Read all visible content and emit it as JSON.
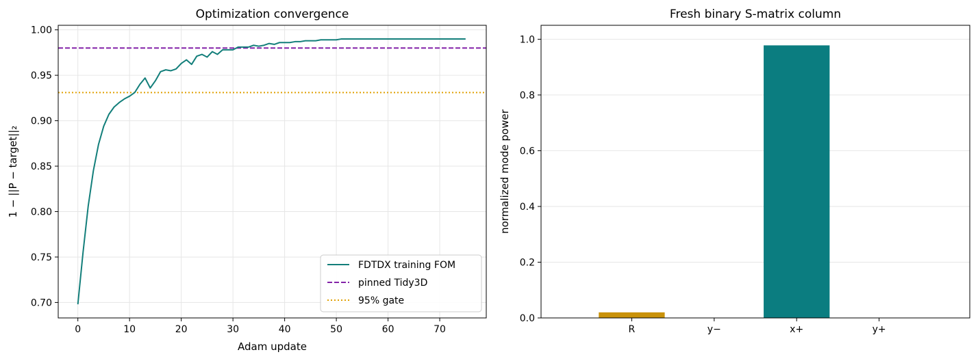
{
  "chart_data": [
    {
      "type": "line",
      "title": "Optimization convergence",
      "xlabel": "Adam update",
      "ylabel": "1 − ||P − target||₂",
      "xlim": [
        -3.8,
        79
      ],
      "ylim": [
        0.683,
        1.005
      ],
      "xticks": [
        0,
        10,
        20,
        30,
        40,
        50,
        60,
        70
      ],
      "yticks": [
        0.7,
        0.75,
        0.8,
        0.85,
        0.9,
        0.95,
        1.0
      ],
      "ytick_labels": [
        "0.70",
        "0.75",
        "0.80",
        "0.85",
        "0.90",
        "0.95",
        "1.00"
      ],
      "grid": true,
      "legend_position": "lower right",
      "series": [
        {
          "name": "FDTDX training FOM",
          "color": "#127e7a",
          "style": "solid",
          "x": [
            0,
            1,
            2,
            3,
            4,
            5,
            6,
            7,
            8,
            9,
            10,
            11,
            12,
            13,
            14,
            15,
            16,
            17,
            18,
            19,
            20,
            21,
            22,
            23,
            24,
            25,
            26,
            27,
            28,
            29,
            30,
            31,
            32,
            33,
            34,
            35,
            36,
            37,
            38,
            39,
            40,
            41,
            42,
            43,
            44,
            45,
            46,
            47,
            48,
            49,
            50,
            51,
            52,
            53,
            54,
            55,
            56,
            57,
            58,
            59,
            60,
            61,
            62,
            63,
            64,
            65,
            66,
            67,
            68,
            69,
            70,
            71,
            72,
            73,
            74,
            75
          ],
          "y": [
            0.698,
            0.755,
            0.806,
            0.845,
            0.874,
            0.894,
            0.907,
            0.915,
            0.92,
            0.924,
            0.927,
            0.931,
            0.94,
            0.947,
            0.936,
            0.944,
            0.954,
            0.956,
            0.955,
            0.957,
            0.963,
            0.967,
            0.962,
            0.971,
            0.973,
            0.97,
            0.976,
            0.973,
            0.978,
            0.978,
            0.978,
            0.981,
            0.981,
            0.981,
            0.983,
            0.982,
            0.983,
            0.985,
            0.984,
            0.986,
            0.986,
            0.986,
            0.987,
            0.987,
            0.988,
            0.988,
            0.988,
            0.989,
            0.989,
            0.989,
            0.989,
            0.99,
            0.99,
            0.99,
            0.99,
            0.99,
            0.99,
            0.99,
            0.99,
            0.99,
            0.99,
            0.99,
            0.99,
            0.99,
            0.99,
            0.99,
            0.99,
            0.99,
            0.99,
            0.99,
            0.99,
            0.99,
            0.99,
            0.99,
            0.99,
            0.99
          ]
        },
        {
          "name": "pinned Tidy3D",
          "color": "#8322a8",
          "style": "dashed",
          "hline": 0.98
        },
        {
          "name": "95% gate",
          "color": "#e0a000",
          "style": "dotted",
          "hline": 0.931
        }
      ]
    },
    {
      "type": "bar",
      "title": "Fresh binary S-matrix column",
      "xlabel": "",
      "ylabel": "normalized mode power",
      "categories": [
        "R",
        "y−",
        "x+",
        "y+"
      ],
      "values": [
        0.02,
        0.0,
        0.978,
        0.0
      ],
      "colors": [
        "#c9920a",
        "#0b7d80",
        "#0b7d80",
        "#0b7d80"
      ],
      "ylim": [
        0,
        1.05
      ],
      "yticks": [
        0.0,
        0.2,
        0.4,
        0.6,
        0.8,
        1.0
      ],
      "ytick_labels": [
        "0.0",
        "0.2",
        "0.4",
        "0.6",
        "0.8",
        "1.0"
      ],
      "grid": "y"
    }
  ]
}
